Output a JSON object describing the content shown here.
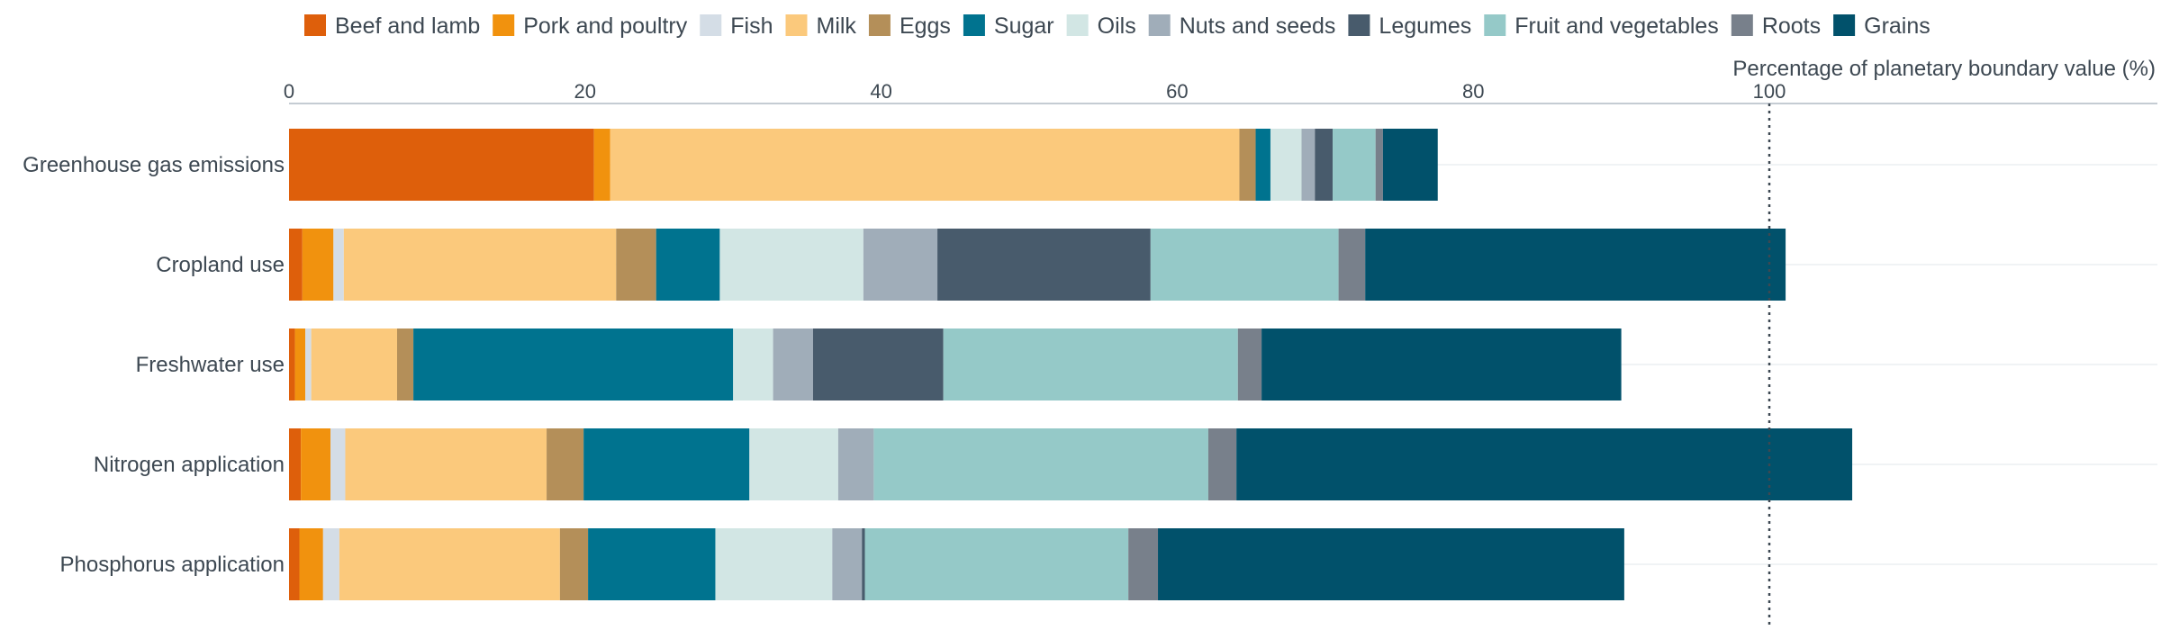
{
  "chart_data": {
    "type": "bar",
    "orientation": "horizontal",
    "stacked": true,
    "title": "",
    "xlabel": "Percentage of planetary boundary value (%)",
    "ylabel": "",
    "xlim": [
      0,
      105
    ],
    "xticks": [
      0,
      20,
      40,
      60,
      80,
      100
    ],
    "reference_line": {
      "value": 100,
      "style": "dotted"
    },
    "grid": true,
    "legend_position": "top",
    "categories": [
      "Greenhouse gas emissions",
      "Cropland use",
      "Freshwater use",
      "Nitrogen application",
      "Phosphorus application"
    ],
    "series": [
      {
        "name": "Beef and lamb",
        "color": "#de5f0b",
        "values": [
          20.6,
          0.9,
          0.4,
          0.8,
          0.7
        ]
      },
      {
        "name": "Pork and poultry",
        "color": "#f1920e",
        "values": [
          1.1,
          2.1,
          0.7,
          2.0,
          1.6
        ]
      },
      {
        "name": "Fish",
        "color": "#d4dde6",
        "values": [
          0.0,
          0.7,
          0.4,
          1.0,
          1.1
        ]
      },
      {
        "name": "Milk",
        "color": "#fbc97c",
        "values": [
          42.5,
          18.4,
          5.8,
          13.6,
          14.9
        ]
      },
      {
        "name": "Eggs",
        "color": "#b48f59",
        "values": [
          1.1,
          2.7,
          1.1,
          2.5,
          1.9
        ]
      },
      {
        "name": "Sugar",
        "color": "#00738f",
        "values": [
          1.0,
          4.3,
          21.6,
          11.2,
          8.6
        ]
      },
      {
        "name": "Oils",
        "color": "#d2e6e4",
        "values": [
          2.1,
          9.7,
          2.7,
          6.0,
          7.9
        ]
      },
      {
        "name": "Nuts and seeds",
        "color": "#a0adb9",
        "values": [
          0.9,
          5.0,
          2.7,
          2.4,
          2.0
        ]
      },
      {
        "name": "Legumes",
        "color": "#485b6c",
        "values": [
          1.2,
          14.4,
          8.8,
          0.0,
          0.2
        ]
      },
      {
        "name": "Fruit and vegetables",
        "color": "#95c9c8",
        "values": [
          2.9,
          12.7,
          19.9,
          22.6,
          17.8
        ]
      },
      {
        "name": "Roots",
        "color": "#78808b",
        "values": [
          0.5,
          1.8,
          1.6,
          1.9,
          2.0
        ]
      },
      {
        "name": "Grains",
        "color": "#01516b",
        "values": [
          3.7,
          28.4,
          24.3,
          41.6,
          31.5
        ]
      }
    ]
  }
}
